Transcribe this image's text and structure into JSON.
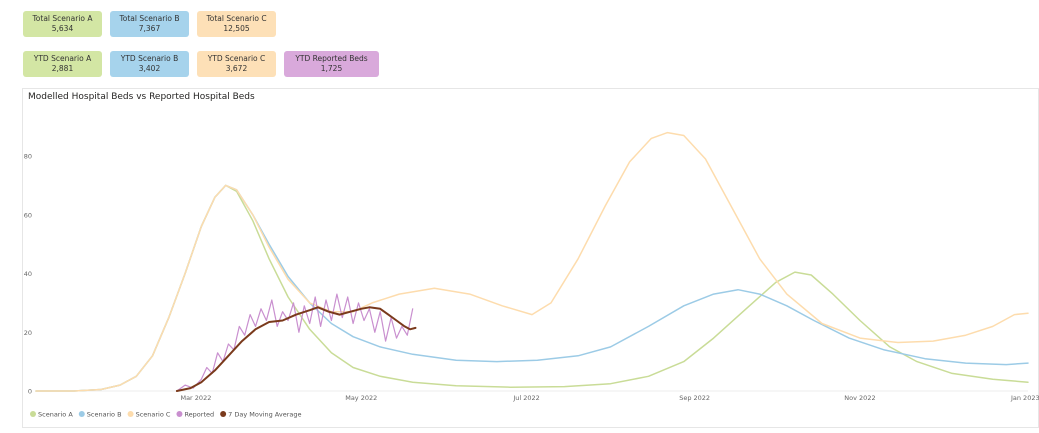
{
  "kpis_row1": [
    {
      "label": "Total Scenario A",
      "value": "5,634",
      "color": "#d3e6a4"
    },
    {
      "label": "Total Scenario B",
      "value": "7,367",
      "color": "#a6d3ec"
    },
    {
      "label": "Total Scenario C",
      "value": "12,505",
      "color": "#fde0b7"
    }
  ],
  "kpis_row2": [
    {
      "label": "YTD Scenario A",
      "value": "2,881",
      "color": "#d3e6a4"
    },
    {
      "label": "YTD Scenario B",
      "value": "3,402",
      "color": "#a6d3ec"
    },
    {
      "label": "YTD Scenario C",
      "value": "3,672",
      "color": "#fde0b7"
    },
    {
      "label": "YTD Reported Beds",
      "value": "1,725",
      "color": "#d9a9db"
    }
  ],
  "chart_title": "Modelled Hospital Beds vs Reported Hospital Beds",
  "chart_data": {
    "type": "line",
    "title": "Modelled Hospital Beds vs Reported Hospital Beds",
    "xlabel": "",
    "ylabel": "",
    "x_range": [
      "2022-01-01",
      "2023-01-02"
    ],
    "ylim": [
      0,
      95
    ],
    "y_ticks": [
      0,
      20,
      40,
      60,
      80
    ],
    "x_ticks": [
      {
        "date": "2022-03-01",
        "label": "Mar 2022"
      },
      {
        "date": "2022-05-01",
        "label": "May 2022"
      },
      {
        "date": "2022-07-01",
        "label": "Jul 2022"
      },
      {
        "date": "2022-09-01",
        "label": "Sep 2022"
      },
      {
        "date": "2022-11-01",
        "label": "Nov 2022"
      },
      {
        "date": "2023-01-01",
        "label": "Jan 2023"
      }
    ],
    "grid": false,
    "legend_position": "bottom-left",
    "series": [
      {
        "name": "Scenario A",
        "color": "#c9dc97",
        "points": [
          [
            "2022-01-01",
            0
          ],
          [
            "2022-01-15",
            0
          ],
          [
            "2022-01-25",
            0.5
          ],
          [
            "2022-02-01",
            2
          ],
          [
            "2022-02-07",
            5
          ],
          [
            "2022-02-13",
            12
          ],
          [
            "2022-02-19",
            25
          ],
          [
            "2022-02-25",
            40
          ],
          [
            "2022-03-03",
            56
          ],
          [
            "2022-03-08",
            66
          ],
          [
            "2022-03-12",
            70
          ],
          [
            "2022-03-16",
            68
          ],
          [
            "2022-03-22",
            58
          ],
          [
            "2022-03-28",
            45
          ],
          [
            "2022-04-04",
            32
          ],
          [
            "2022-04-12",
            21
          ],
          [
            "2022-04-20",
            13
          ],
          [
            "2022-04-28",
            8
          ],
          [
            "2022-05-08",
            5
          ],
          [
            "2022-05-20",
            3
          ],
          [
            "2022-06-05",
            1.8
          ],
          [
            "2022-06-25",
            1.3
          ],
          [
            "2022-07-15",
            1.5
          ],
          [
            "2022-08-01",
            2.5
          ],
          [
            "2022-08-15",
            5
          ],
          [
            "2022-08-28",
            10
          ],
          [
            "2022-09-08",
            18
          ],
          [
            "2022-09-20",
            28
          ],
          [
            "2022-10-01",
            37
          ],
          [
            "2022-10-08",
            40.5
          ],
          [
            "2022-10-14",
            39.5
          ],
          [
            "2022-10-22",
            33
          ],
          [
            "2022-11-01",
            24
          ],
          [
            "2022-11-12",
            15
          ],
          [
            "2022-11-22",
            10
          ],
          [
            "2022-12-05",
            6
          ],
          [
            "2022-12-20",
            4
          ],
          [
            "2023-01-02",
            3
          ]
        ]
      },
      {
        "name": "Scenario B",
        "color": "#9ccbe6",
        "points": [
          [
            "2022-01-01",
            0
          ],
          [
            "2022-01-15",
            0
          ],
          [
            "2022-01-25",
            0.5
          ],
          [
            "2022-02-01",
            2
          ],
          [
            "2022-02-07",
            5
          ],
          [
            "2022-02-13",
            12
          ],
          [
            "2022-02-19",
            25
          ],
          [
            "2022-02-25",
            40
          ],
          [
            "2022-03-03",
            56
          ],
          [
            "2022-03-08",
            66
          ],
          [
            "2022-03-12",
            70
          ],
          [
            "2022-03-16",
            68.5
          ],
          [
            "2022-03-22",
            60
          ],
          [
            "2022-03-28",
            50
          ],
          [
            "2022-04-04",
            39
          ],
          [
            "2022-04-12",
            30
          ],
          [
            "2022-04-20",
            23
          ],
          [
            "2022-04-28",
            18.5
          ],
          [
            "2022-05-08",
            15
          ],
          [
            "2022-05-20",
            12.5
          ],
          [
            "2022-06-05",
            10.5
          ],
          [
            "2022-06-20",
            10
          ],
          [
            "2022-07-05",
            10.5
          ],
          [
            "2022-07-20",
            12
          ],
          [
            "2022-08-01",
            15
          ],
          [
            "2022-08-15",
            22
          ],
          [
            "2022-08-28",
            29
          ],
          [
            "2022-09-08",
            33
          ],
          [
            "2022-09-17",
            34.5
          ],
          [
            "2022-09-25",
            33
          ],
          [
            "2022-10-05",
            29
          ],
          [
            "2022-10-15",
            24
          ],
          [
            "2022-10-28",
            18
          ],
          [
            "2022-11-10",
            14
          ],
          [
            "2022-11-25",
            11
          ],
          [
            "2022-12-10",
            9.5
          ],
          [
            "2022-12-25",
            9
          ],
          [
            "2023-01-02",
            9.5
          ]
        ]
      },
      {
        "name": "Scenario C",
        "color": "#fddcad",
        "points": [
          [
            "2022-01-01",
            0
          ],
          [
            "2022-01-15",
            0
          ],
          [
            "2022-01-25",
            0.5
          ],
          [
            "2022-02-01",
            2
          ],
          [
            "2022-02-07",
            5
          ],
          [
            "2022-02-13",
            12
          ],
          [
            "2022-02-19",
            25
          ],
          [
            "2022-02-25",
            40
          ],
          [
            "2022-03-03",
            56
          ],
          [
            "2022-03-08",
            66
          ],
          [
            "2022-03-12",
            70
          ],
          [
            "2022-03-16",
            68.5
          ],
          [
            "2022-03-22",
            60
          ],
          [
            "2022-03-28",
            49
          ],
          [
            "2022-04-04",
            38
          ],
          [
            "2022-04-12",
            30
          ],
          [
            "2022-04-20",
            27
          ],
          [
            "2022-04-28",
            27
          ],
          [
            "2022-05-05",
            30
          ],
          [
            "2022-05-15",
            33
          ],
          [
            "2022-05-28",
            35
          ],
          [
            "2022-06-10",
            33
          ],
          [
            "2022-06-22",
            29
          ],
          [
            "2022-07-03",
            26
          ],
          [
            "2022-07-10",
            30
          ],
          [
            "2022-07-20",
            45
          ],
          [
            "2022-07-30",
            63
          ],
          [
            "2022-08-08",
            78
          ],
          [
            "2022-08-16",
            86
          ],
          [
            "2022-08-22",
            88
          ],
          [
            "2022-08-28",
            87
          ],
          [
            "2022-09-05",
            79
          ],
          [
            "2022-09-15",
            62
          ],
          [
            "2022-09-25",
            45
          ],
          [
            "2022-10-05",
            33
          ],
          [
            "2022-10-18",
            23
          ],
          [
            "2022-11-01",
            18
          ],
          [
            "2022-11-15",
            16.5
          ],
          [
            "2022-11-28",
            17
          ],
          [
            "2022-12-10",
            19
          ],
          [
            "2022-12-20",
            22
          ],
          [
            "2022-12-28",
            26
          ],
          [
            "2023-01-02",
            26.5
          ]
        ]
      },
      {
        "name": "Reported",
        "color": "#c98fcf",
        "points": [
          [
            "2022-02-22",
            0
          ],
          [
            "2022-02-25",
            2
          ],
          [
            "2022-02-28",
            1
          ],
          [
            "2022-03-03",
            4
          ],
          [
            "2022-03-05",
            8
          ],
          [
            "2022-03-07",
            6
          ],
          [
            "2022-03-09",
            13
          ],
          [
            "2022-03-11",
            10
          ],
          [
            "2022-03-13",
            16
          ],
          [
            "2022-03-15",
            14
          ],
          [
            "2022-03-17",
            22
          ],
          [
            "2022-03-19",
            19
          ],
          [
            "2022-03-21",
            26
          ],
          [
            "2022-03-23",
            22
          ],
          [
            "2022-03-25",
            28
          ],
          [
            "2022-03-27",
            24
          ],
          [
            "2022-03-29",
            31
          ],
          [
            "2022-03-31",
            22
          ],
          [
            "2022-04-02",
            27
          ],
          [
            "2022-04-04",
            24
          ],
          [
            "2022-04-06",
            30
          ],
          [
            "2022-04-08",
            20
          ],
          [
            "2022-04-10",
            29
          ],
          [
            "2022-04-12",
            23
          ],
          [
            "2022-04-14",
            32
          ],
          [
            "2022-04-16",
            22
          ],
          [
            "2022-04-18",
            31
          ],
          [
            "2022-04-20",
            24
          ],
          [
            "2022-04-22",
            33
          ],
          [
            "2022-04-24",
            25
          ],
          [
            "2022-04-26",
            32
          ],
          [
            "2022-04-28",
            23
          ],
          [
            "2022-04-30",
            30
          ],
          [
            "2022-05-02",
            24
          ],
          [
            "2022-05-04",
            28
          ],
          [
            "2022-05-06",
            20
          ],
          [
            "2022-05-08",
            27
          ],
          [
            "2022-05-10",
            17
          ],
          [
            "2022-05-12",
            25
          ],
          [
            "2022-05-14",
            18
          ],
          [
            "2022-05-16",
            22
          ],
          [
            "2022-05-18",
            19
          ],
          [
            "2022-05-20",
            28
          ]
        ]
      },
      {
        "name": "7 Day Moving Average",
        "color": "#7a3a1c",
        "points": [
          [
            "2022-02-22",
            0
          ],
          [
            "2022-02-27",
            1
          ],
          [
            "2022-03-03",
            3
          ],
          [
            "2022-03-08",
            7
          ],
          [
            "2022-03-13",
            12
          ],
          [
            "2022-03-18",
            17
          ],
          [
            "2022-03-23",
            21
          ],
          [
            "2022-03-28",
            23.5
          ],
          [
            "2022-04-02",
            24
          ],
          [
            "2022-04-07",
            26
          ],
          [
            "2022-04-12",
            27.5
          ],
          [
            "2022-04-15",
            28.5
          ],
          [
            "2022-04-19",
            27
          ],
          [
            "2022-04-23",
            26
          ],
          [
            "2022-04-27",
            27
          ],
          [
            "2022-05-01",
            28
          ],
          [
            "2022-05-04",
            28.5
          ],
          [
            "2022-05-08",
            28
          ],
          [
            "2022-05-11",
            26
          ],
          [
            "2022-05-14",
            24
          ],
          [
            "2022-05-17",
            22
          ],
          [
            "2022-05-19",
            21
          ],
          [
            "2022-05-21",
            21.5
          ]
        ]
      }
    ]
  }
}
